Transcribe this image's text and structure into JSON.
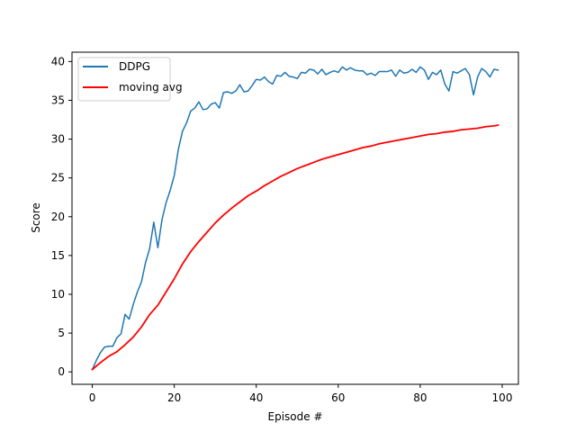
{
  "chart_data": {
    "type": "line",
    "xlabel": "Episode #",
    "ylabel": "Score",
    "xlim": [
      -4.95,
      103.95
    ],
    "ylim": [
      -1.6,
      41.2
    ],
    "xticks": [
      0,
      20,
      40,
      60,
      80,
      100
    ],
    "yticks": [
      0,
      5,
      10,
      15,
      20,
      25,
      30,
      35,
      40
    ],
    "grid": false,
    "legend_position": "upper-left",
    "series": [
      {
        "name": "DDPG",
        "color": "#1f77b4",
        "x": [
          0,
          1,
          2,
          3,
          4,
          5,
          6,
          7,
          8,
          9,
          10,
          11,
          12,
          13,
          14,
          15,
          16,
          17,
          18,
          19,
          20,
          21,
          22,
          23,
          24,
          25,
          26,
          27,
          28,
          29,
          30,
          31,
          32,
          33,
          34,
          35,
          36,
          37,
          38,
          39,
          40,
          41,
          42,
          43,
          44,
          45,
          46,
          47,
          48,
          49,
          50,
          51,
          52,
          53,
          54,
          55,
          56,
          57,
          58,
          59,
          60,
          61,
          62,
          63,
          64,
          65,
          66,
          67,
          68,
          69,
          70,
          71,
          72,
          73,
          74,
          75,
          76,
          77,
          78,
          79,
          80,
          81,
          82,
          83,
          84,
          85,
          86,
          87,
          88,
          89,
          90,
          91,
          92,
          93,
          94,
          95,
          96,
          97,
          98,
          99
        ],
        "y": [
          0.3,
          1.5,
          2.5,
          3.2,
          3.3,
          3.3,
          4.4,
          4.9,
          7.4,
          6.8,
          8.7,
          10.3,
          11.6,
          14.1,
          15.9,
          19.3,
          16.0,
          19.6,
          21.8,
          23.4,
          25.3,
          28.7,
          31.0,
          32.1,
          33.6,
          34.0,
          34.8,
          33.8,
          33.9,
          34.5,
          34.7,
          34.0,
          36.0,
          36.1,
          35.9,
          36.2,
          37.0,
          36.1,
          36.2,
          36.9,
          37.7,
          37.6,
          38.0,
          37.4,
          37.1,
          38.2,
          38.1,
          38.6,
          38.1,
          38.0,
          37.8,
          38.6,
          38.5,
          39.0,
          38.9,
          38.4,
          39.0,
          38.3,
          38.6,
          38.8,
          38.6,
          39.3,
          38.9,
          39.2,
          38.9,
          38.8,
          38.8,
          38.3,
          38.5,
          38.2,
          38.7,
          38.7,
          38.7,
          38.9,
          38.1,
          38.9,
          38.5,
          38.6,
          39.0,
          38.6,
          39.3,
          38.9,
          37.7,
          38.6,
          38.3,
          38.9,
          37.1,
          36.2,
          38.7,
          38.5,
          38.8,
          39.1,
          38.3,
          35.7,
          38.0,
          39.1,
          38.7,
          38.0,
          39.0,
          38.9
        ]
      },
      {
        "name": "moving avg",
        "color": "#ff0000",
        "x": [
          0,
          2,
          4,
          6,
          8,
          10,
          12,
          14,
          16,
          18,
          20,
          22,
          24,
          26,
          28,
          30,
          32,
          34,
          36,
          38,
          40,
          42,
          44,
          46,
          48,
          50,
          52,
          54,
          56,
          58,
          60,
          62,
          64,
          66,
          68,
          70,
          72,
          74,
          76,
          78,
          80,
          82,
          84,
          86,
          88,
          90,
          92,
          94,
          96,
          98,
          99
        ],
        "y": [
          0.3,
          1.2,
          2.0,
          2.6,
          3.5,
          4.5,
          5.8,
          7.4,
          8.6,
          10.3,
          12.0,
          13.9,
          15.5,
          16.8,
          18.0,
          19.2,
          20.2,
          21.1,
          21.9,
          22.7,
          23.3,
          24.0,
          24.6,
          25.2,
          25.7,
          26.2,
          26.6,
          27.0,
          27.4,
          27.7,
          28.0,
          28.3,
          28.6,
          28.9,
          29.1,
          29.4,
          29.6,
          29.8,
          30.0,
          30.2,
          30.4,
          30.6,
          30.7,
          30.9,
          31.0,
          31.2,
          31.3,
          31.4,
          31.6,
          31.7,
          31.8
        ]
      }
    ]
  }
}
